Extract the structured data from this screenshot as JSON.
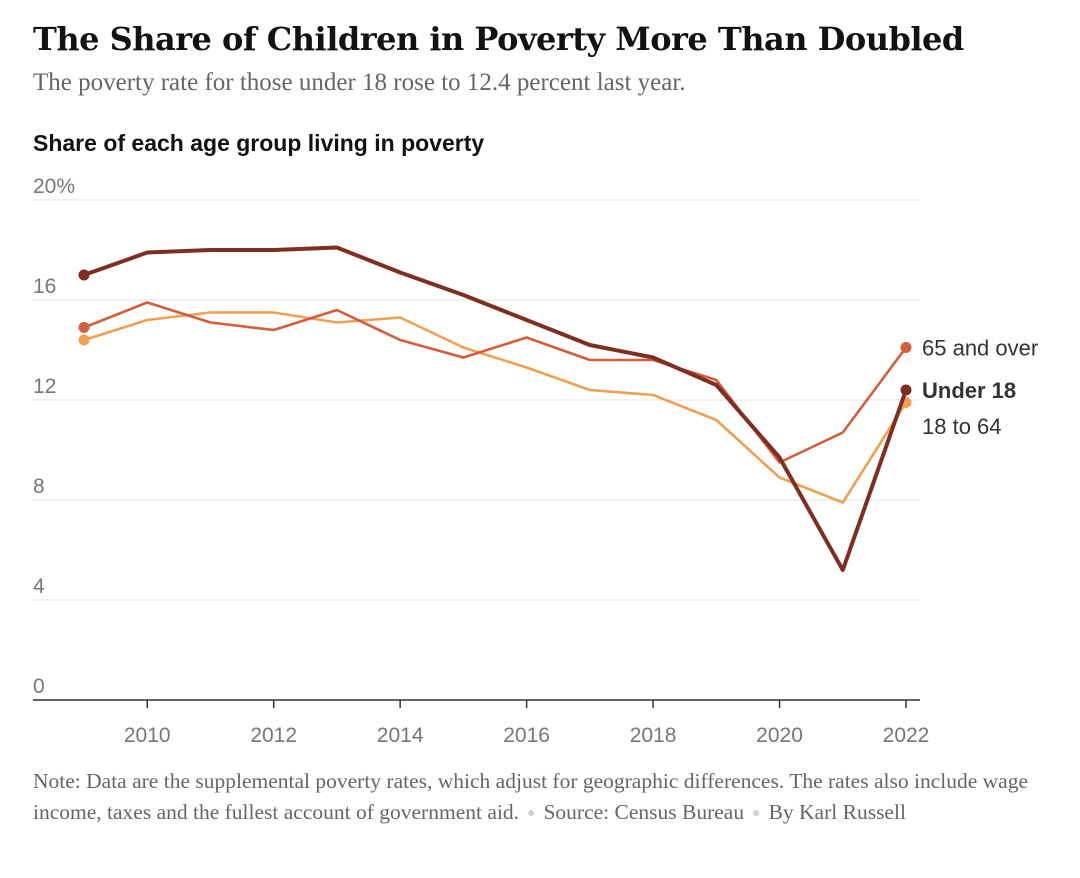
{
  "header": {
    "title": "The Share of Children in Poverty More Than Doubled",
    "subtitle": "The poverty rate for those under 18 rose to 12.4 percent last year."
  },
  "chart_heading": "Share of each age group living in poverty",
  "footer": {
    "note": "Note: Data are the supplemental poverty rates, which adjust for geographic differences. The rates also include wage income, taxes and the fullest account of government aid.",
    "source": "Source: Census Bureau",
    "byline": "By Karl Russell"
  },
  "chart_data": {
    "type": "line",
    "title": "Share of each age group living in poverty",
    "xlabel": "",
    "ylabel": "",
    "x": [
      2009,
      2010,
      2011,
      2012,
      2013,
      2014,
      2015,
      2016,
      2017,
      2018,
      2019,
      2020,
      2021,
      2022
    ],
    "xticks": [
      2010,
      2012,
      2014,
      2016,
      2018,
      2020,
      2022
    ],
    "xticklabels": [
      "2010",
      "2012",
      "2014",
      "2016",
      "2018",
      "2020",
      "2022"
    ],
    "ylim": [
      0,
      20
    ],
    "yticks": [
      0,
      4,
      8,
      12,
      16,
      20
    ],
    "yticklabels": [
      "0",
      "4",
      "8",
      "12",
      "16",
      "20%"
    ],
    "grid": true,
    "series": [
      {
        "name": "18 to 64",
        "label": "18 to 64",
        "color": "#f0a055",
        "bold": false,
        "values": [
          14.4,
          15.2,
          15.5,
          15.5,
          15.1,
          15.3,
          14.1,
          13.3,
          12.4,
          12.2,
          11.2,
          8.9,
          7.9,
          11.9
        ]
      },
      {
        "name": "65 and over",
        "label": "65 and over",
        "color": "#d35d3c",
        "bold": false,
        "values": [
          14.9,
          15.9,
          15.1,
          14.8,
          15.6,
          14.4,
          13.7,
          14.5,
          13.6,
          13.6,
          12.8,
          9.5,
          10.7,
          14.1
        ]
      },
      {
        "name": "Under 18",
        "label": "Under 18",
        "color": "#7e2f22",
        "bold": true,
        "values": [
          17.0,
          17.9,
          18.0,
          18.0,
          18.1,
          17.1,
          16.2,
          15.2,
          14.2,
          13.7,
          12.6,
          9.7,
          5.2,
          12.4
        ]
      }
    ]
  }
}
